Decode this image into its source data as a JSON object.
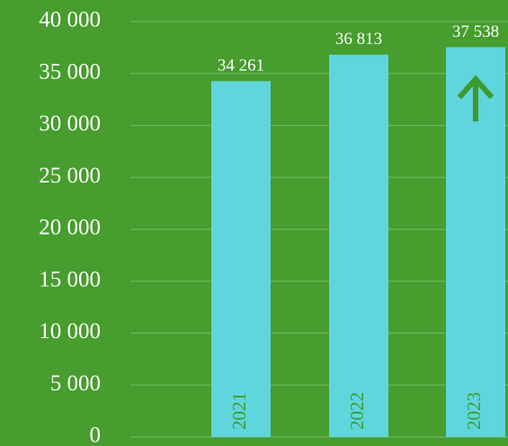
{
  "chart_data": {
    "type": "bar",
    "categories": [
      "2021",
      "2022",
      "2023"
    ],
    "values": [
      34261,
      36813,
      37538
    ],
    "value_labels": [
      "34 261",
      "36 813",
      "37 538"
    ],
    "color": "#5fd6dc",
    "ylim": [
      0,
      40000
    ],
    "yticks": [
      0,
      {
        "value": 5000,
        "label": "5 000"
      },
      {
        "value": 10000,
        "label": "10 000"
      },
      {
        "value": 15000,
        "label": "15 000"
      },
      {
        "value": 20000,
        "label": "20 000"
      },
      {
        "value": 25000,
        "label": "25 000"
      },
      {
        "value": 30000,
        "label": "30 000"
      },
      {
        "value": 35000,
        "label": "35 000"
      },
      {
        "value": 40000,
        "label": "40 000"
      }
    ],
    "grid": true
  }
}
